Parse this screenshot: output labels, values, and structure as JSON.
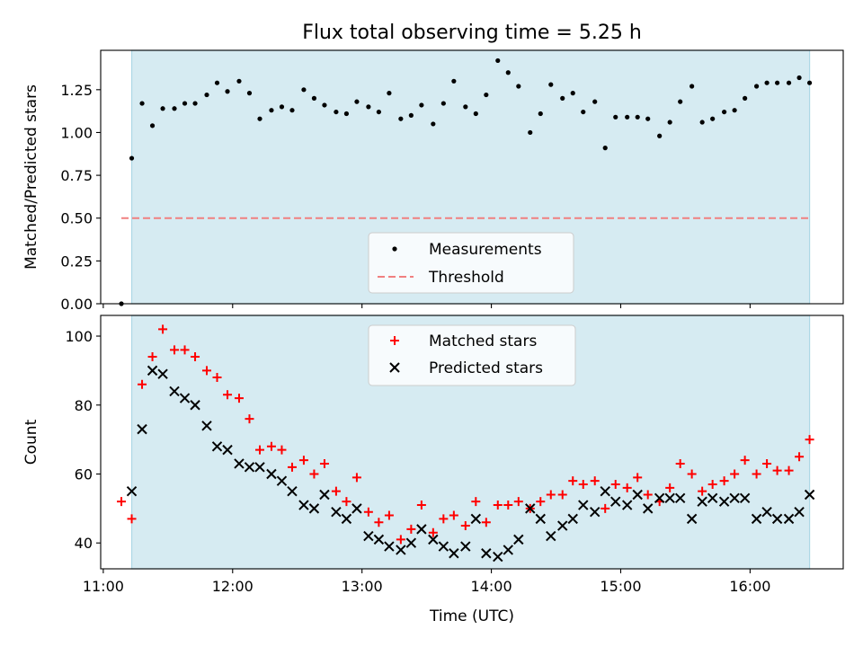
{
  "figure": {
    "title": "Flux total observing time = 5.25 h"
  },
  "colors": {
    "shade": "#add8e6",
    "measurement": "#000000",
    "threshold": "#f08080",
    "matched": "#ff0000",
    "predicted": "#000000"
  },
  "chart_data": [
    {
      "type": "scatter",
      "title": "Flux total observing time = 5.25 h",
      "xlabel": "",
      "ylabel": "Matched/Predicted stars",
      "xlim": [
        10.98,
        16.72
      ],
      "ylim": [
        0.0,
        1.48
      ],
      "x_ticks": [
        11,
        12,
        13,
        14,
        15,
        16
      ],
      "x_tick_labels": [
        "",
        "",
        "",
        "",
        "",
        ""
      ],
      "y_ticks": [
        0.0,
        0.25,
        0.5,
        0.75,
        1.0,
        1.25
      ],
      "y_tick_labels": [
        "0.00",
        "0.25",
        "0.50",
        "0.75",
        "1.00",
        "1.25"
      ],
      "shaded_span": [
        11.22,
        16.46
      ],
      "threshold": {
        "value": 0.5,
        "x_range": [
          11.14,
          16.46
        ],
        "label": "Threshold"
      },
      "legend": {
        "position": "lower center",
        "entries": [
          "Measurements",
          "Threshold"
        ]
      },
      "series": [
        {
          "name": "Measurements",
          "x": [
            11.14,
            11.22,
            11.3,
            11.38,
            11.46,
            11.55,
            11.63,
            11.71,
            11.8,
            11.88,
            11.96,
            12.05,
            12.13,
            12.21,
            12.3,
            12.38,
            12.46,
            12.55,
            12.63,
            12.71,
            12.8,
            12.88,
            12.96,
            13.05,
            13.13,
            13.21,
            13.3,
            13.38,
            13.46,
            13.55,
            13.63,
            13.71,
            13.8,
            13.88,
            13.96,
            14.05,
            14.13,
            14.21,
            14.3,
            14.38,
            14.46,
            14.55,
            14.63,
            14.71,
            14.8,
            14.88,
            14.96,
            15.05,
            15.13,
            15.21,
            15.3,
            15.38,
            15.46,
            15.55,
            15.63,
            15.71,
            15.8,
            15.88,
            15.96,
            16.05,
            16.13,
            16.21,
            16.3,
            16.38,
            16.46
          ],
          "values": [
            0.0,
            0.85,
            1.17,
            1.04,
            1.14,
            1.14,
            1.17,
            1.17,
            1.22,
            1.29,
            1.24,
            1.3,
            1.23,
            1.08,
            1.13,
            1.15,
            1.13,
            1.25,
            1.2,
            1.16,
            1.12,
            1.11,
            1.18,
            1.15,
            1.12,
            1.23,
            1.08,
            1.1,
            1.16,
            1.05,
            1.17,
            1.3,
            1.15,
            1.11,
            1.22,
            1.42,
            1.35,
            1.27,
            1.0,
            1.11,
            1.28,
            1.2,
            1.23,
            1.12,
            1.18,
            0.91,
            1.09,
            1.09,
            1.09,
            1.08,
            0.98,
            1.06,
            1.18,
            1.27,
            1.06,
            1.08,
            1.12,
            1.13,
            1.2,
            1.27,
            1.29,
            1.29,
            1.29,
            1.32,
            1.29
          ]
        }
      ]
    },
    {
      "type": "scatter",
      "title": "",
      "xlabel": "Time (UTC)",
      "ylabel": "Count",
      "xlim": [
        10.98,
        16.72
      ],
      "ylim": [
        32.5,
        106
      ],
      "x_ticks": [
        11,
        12,
        13,
        14,
        15,
        16
      ],
      "x_tick_labels": [
        "11:00",
        "12:00",
        "13:00",
        "14:00",
        "15:00",
        "16:00"
      ],
      "y_ticks": [
        40,
        60,
        80,
        100
      ],
      "y_tick_labels": [
        "40",
        "60",
        "80",
        "100"
      ],
      "shaded_span": [
        11.22,
        16.46
      ],
      "legend": {
        "position": "upper center",
        "entries": [
          "Matched stars",
          "Predicted stars"
        ]
      },
      "series": [
        {
          "name": "Matched stars",
          "marker": "plus",
          "x": [
            11.14,
            11.22,
            11.3,
            11.38,
            11.46,
            11.55,
            11.63,
            11.71,
            11.8,
            11.88,
            11.96,
            12.05,
            12.13,
            12.21,
            12.3,
            12.38,
            12.46,
            12.55,
            12.63,
            12.71,
            12.8,
            12.88,
            12.96,
            13.05,
            13.13,
            13.21,
            13.3,
            13.38,
            13.46,
            13.55,
            13.63,
            13.71,
            13.8,
            13.88,
            13.96,
            14.05,
            14.13,
            14.21,
            14.3,
            14.38,
            14.46,
            14.55,
            14.63,
            14.71,
            14.8,
            14.88,
            14.96,
            15.05,
            15.13,
            15.21,
            15.3,
            15.38,
            15.46,
            15.55,
            15.63,
            15.71,
            15.8,
            15.88,
            15.96,
            16.05,
            16.13,
            16.21,
            16.3,
            16.38,
            16.46
          ],
          "values": [
            52,
            47,
            86,
            94,
            102,
            96,
            96,
            94,
            90,
            88,
            83,
            82,
            76,
            67,
            68,
            67,
            62,
            64,
            60,
            63,
            55,
            52,
            59,
            49,
            46,
            48,
            41,
            44,
            51,
            43,
            47,
            48,
            45,
            52,
            46,
            51,
            51,
            52,
            50,
            52,
            54,
            54,
            58,
            57,
            58,
            50,
            57,
            56,
            59,
            54,
            52,
            56,
            63,
            60,
            55,
            57,
            58,
            60,
            64,
            60,
            63,
            61,
            61,
            65,
            70
          ]
        },
        {
          "name": "Predicted stars",
          "marker": "x",
          "x": [
            11.22,
            11.3,
            11.38,
            11.46,
            11.55,
            11.63,
            11.71,
            11.8,
            11.88,
            11.96,
            12.05,
            12.13,
            12.21,
            12.3,
            12.38,
            12.46,
            12.55,
            12.63,
            12.71,
            12.8,
            12.88,
            12.96,
            13.05,
            13.13,
            13.21,
            13.3,
            13.38,
            13.46,
            13.55,
            13.63,
            13.71,
            13.8,
            13.88,
            13.96,
            14.05,
            14.13,
            14.21,
            14.3,
            14.38,
            14.46,
            14.55,
            14.63,
            14.71,
            14.8,
            14.88,
            14.96,
            15.05,
            15.13,
            15.21,
            15.3,
            15.38,
            15.46,
            15.55,
            15.63,
            15.71,
            15.8,
            15.88,
            15.96,
            16.05,
            16.13,
            16.21,
            16.3,
            16.38,
            16.46
          ],
          "values": [
            55,
            73,
            90,
            89,
            84,
            82,
            80,
            74,
            68,
            67,
            63,
            62,
            62,
            60,
            58,
            55,
            51,
            50,
            54,
            49,
            47,
            50,
            42,
            41,
            39,
            38,
            40,
            44,
            41,
            39,
            37,
            39,
            47,
            37,
            36,
            38,
            41,
            50,
            47,
            42,
            45,
            47,
            51,
            49,
            55,
            52,
            51,
            54,
            50,
            53,
            53,
            53,
            47,
            52,
            53,
            52,
            53,
            53,
            47,
            49,
            47,
            47,
            49,
            54
          ]
        }
      ]
    }
  ]
}
